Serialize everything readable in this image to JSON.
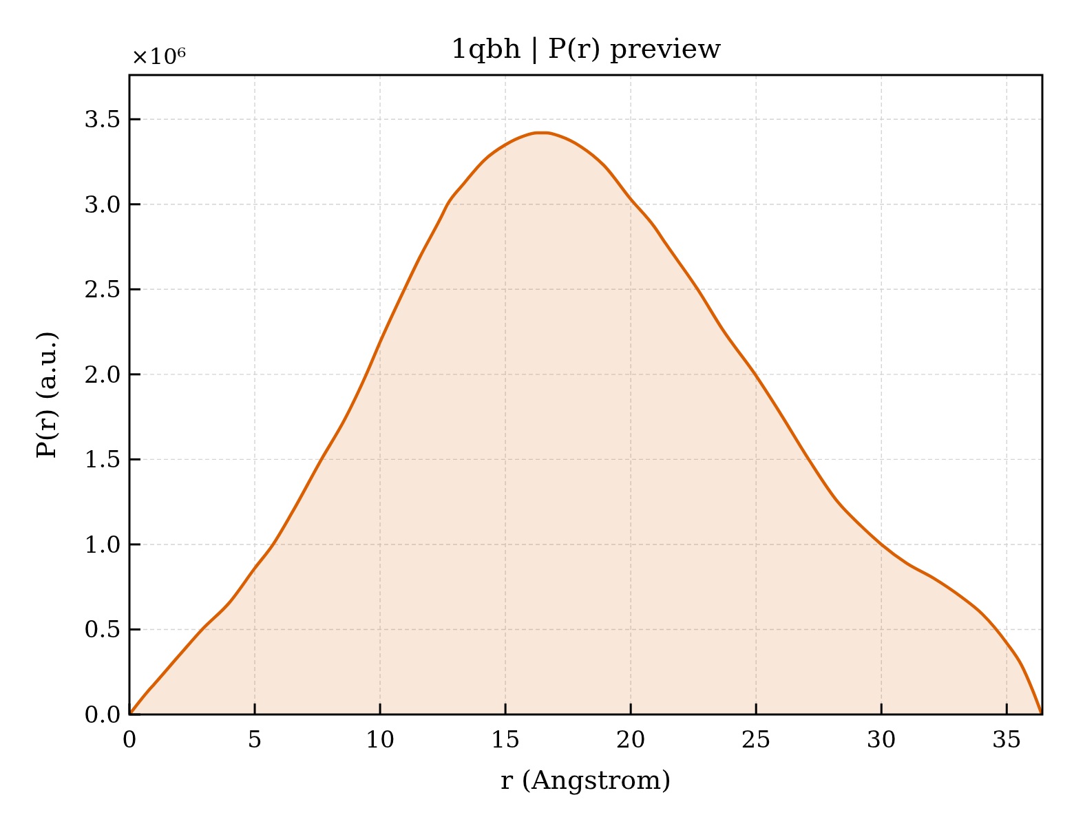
{
  "chart_data": {
    "type": "area",
    "title": "1qbh | P(r) preview",
    "xlabel": "r (Angstrom)",
    "ylabel": "P(r) (a.u.)",
    "annotations": [
      "×10⁶"
    ],
    "x": [
      0,
      0.7,
      1.0,
      2.0,
      2.9,
      4.0,
      5.0,
      5.73,
      6.5,
      7.66,
      8.57,
      9.45,
      10.0,
      10.97,
      11.59,
      12.42,
      12.69,
      13.33,
      14.16,
      15.0,
      15.71,
      16.26,
      16.63,
      17.18,
      18.0,
      18.92,
      20.0,
      20.93,
      21.39,
      22.67,
      23.68,
      24.96,
      25.97,
      27.1,
      28.26,
      29.18,
      30.0,
      31.0,
      32.1,
      33.2,
      34.03,
      35.0,
      35.59,
      36.04,
      36.4
    ],
    "values": [
      0,
      0.13,
      0.18,
      0.35,
      0.5,
      0.66,
      0.86,
      1.0,
      1.19,
      1.5,
      1.73,
      2.0,
      2.19,
      2.5,
      2.69,
      2.92,
      3.0,
      3.12,
      3.26,
      3.35,
      3.4,
      3.42,
      3.42,
      3.4,
      3.34,
      3.23,
      3.03,
      2.87,
      2.77,
      2.5,
      2.26,
      2.0,
      1.77,
      1.5,
      1.25,
      1.11,
      1.0,
      0.89,
      0.8,
      0.69,
      0.59,
      0.42,
      0.29,
      0.14,
      0
    ],
    "color": "#d95f02",
    "xlim": [
      0,
      36.42
    ],
    "ylim": [
      0,
      3.76
    ],
    "xticks": [
      0,
      5,
      10,
      15,
      20,
      25,
      30,
      35
    ],
    "yticks": [
      {
        "value": 0,
        "label": "0.0"
      },
      0.5,
      {
        "value": 1,
        "label": "1.0"
      },
      1.5,
      {
        "value": 2,
        "label": "2.0"
      },
      2.5,
      {
        "value": 3,
        "label": "3.0"
      },
      3.5
    ],
    "grid": true
  }
}
